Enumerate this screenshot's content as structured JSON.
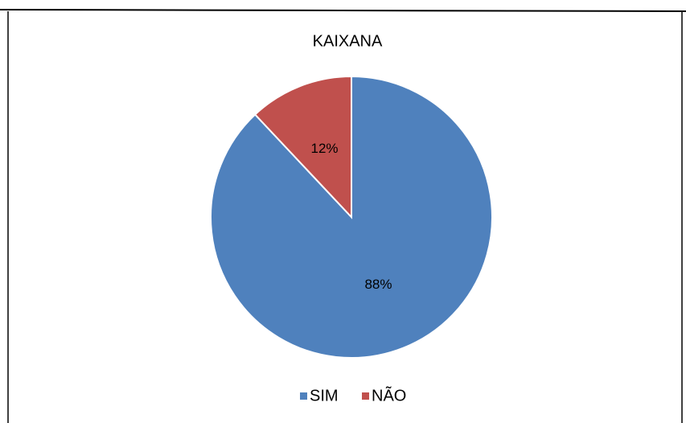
{
  "chart_data": {
    "type": "pie",
    "title": "KAIXANA",
    "categories": [
      "SIM",
      "NÃO"
    ],
    "values": [
      88,
      12
    ],
    "value_labels": [
      "88%",
      "12%"
    ],
    "colors": [
      "#4f81bd",
      "#c0504d"
    ],
    "legend": "bottom"
  }
}
